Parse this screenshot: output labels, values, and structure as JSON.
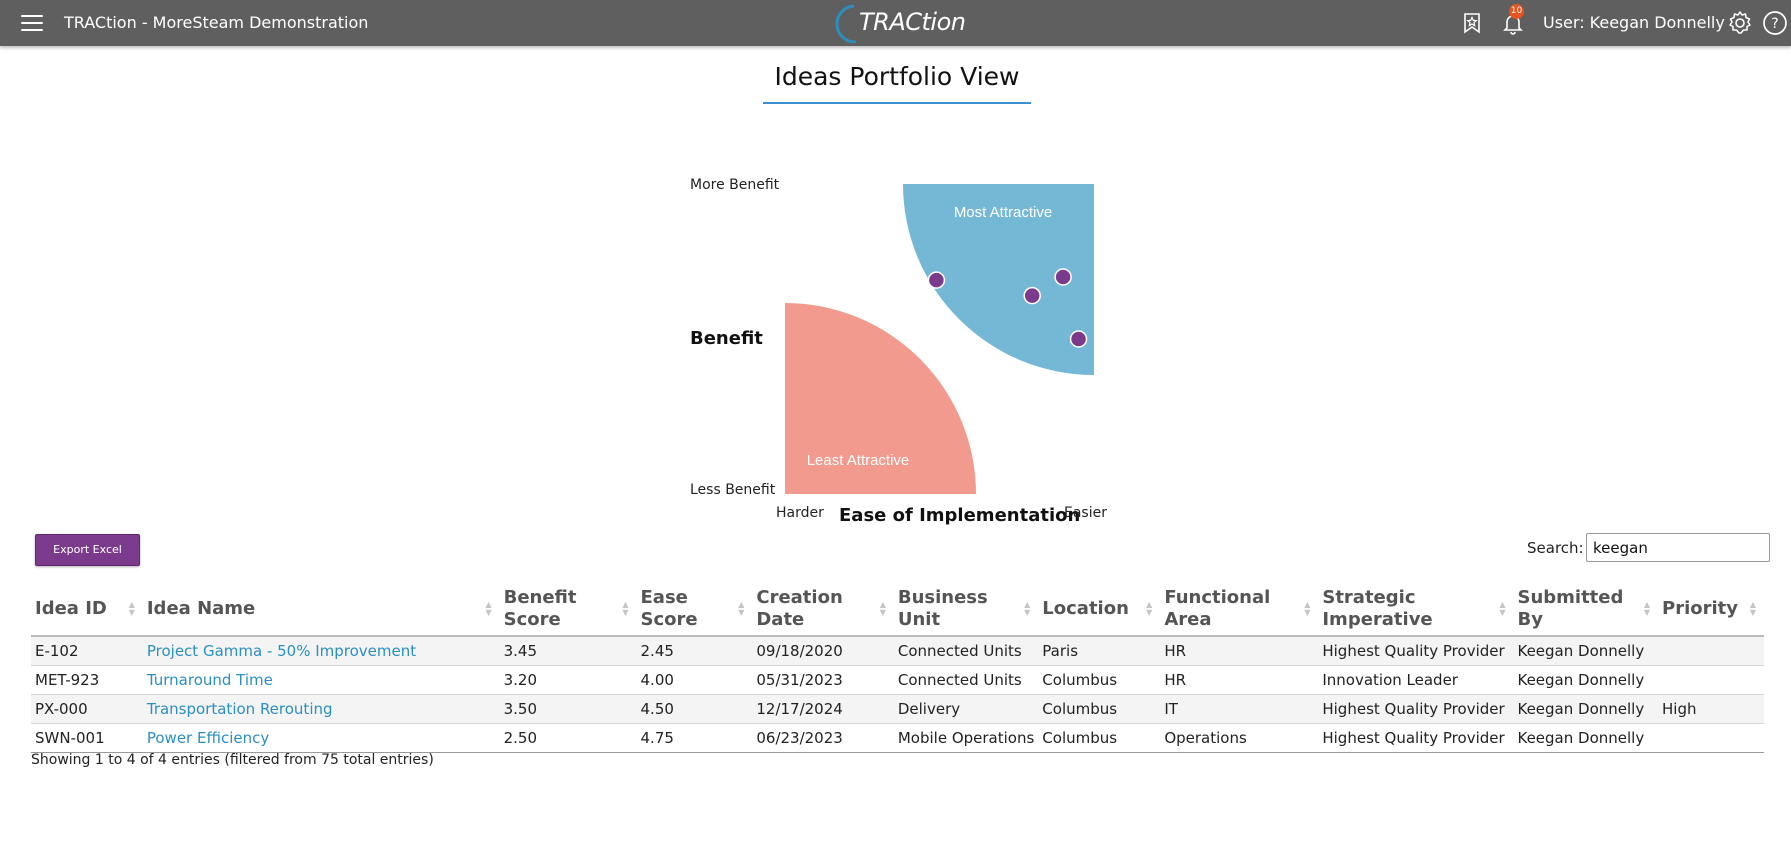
{
  "header": {
    "menu_icon": "hamburger-menu-icon",
    "app_title": "TRACtion - MoreSteam Demonstration",
    "logo_text": "TRACtion",
    "favorites_icon": "star-bookmark-icon",
    "notifications_icon": "bell-icon",
    "notification_count": "10",
    "user_label": "User: Keegan Donnelly",
    "settings_icon": "gear-icon",
    "help_icon": "help-circle-icon"
  },
  "page": {
    "title": "Ideas Portfolio View"
  },
  "chart_data": {
    "type": "scatter",
    "title": "",
    "ylabel": "Benefit",
    "xlabel": "Ease of Implementation",
    "y_top_label": "More Benefit",
    "y_bottom_label": "Less Benefit",
    "x_left_label": "Harder",
    "x_right_label": "Easier",
    "xlim": [
      0,
      5
    ],
    "ylim": [
      0,
      5
    ],
    "quadrants": [
      {
        "name": "Most Attractive",
        "color": "#75b8d6"
      },
      {
        "name": "Least Attractive",
        "color": "#f29a8d"
      }
    ],
    "point_color": "#7b3a8c",
    "points": [
      {
        "id": "E-102",
        "x": 2.45,
        "y": 3.45
      },
      {
        "id": "MET-923",
        "x": 4.0,
        "y": 3.2
      },
      {
        "id": "PX-000",
        "x": 4.5,
        "y": 3.5
      },
      {
        "id": "SWN-001",
        "x": 4.75,
        "y": 2.5
      }
    ],
    "grid": false
  },
  "toolbar": {
    "export_label": "Export Excel",
    "search_label": "Search:",
    "search_value": "keegan"
  },
  "table": {
    "columns": [
      {
        "l1": "Idea ID",
        "l2": ""
      },
      {
        "l1": "Idea Name",
        "l2": ""
      },
      {
        "l1": "Benefit",
        "l2": "Score"
      },
      {
        "l1": "Ease",
        "l2": "Score"
      },
      {
        "l1": "Creation",
        "l2": "Date"
      },
      {
        "l1": "Business",
        "l2": "Unit"
      },
      {
        "l1": "Location",
        "l2": ""
      },
      {
        "l1": "Functional",
        "l2": "Area"
      },
      {
        "l1": "Strategic",
        "l2": "Imperative"
      },
      {
        "l1": "Submitted",
        "l2": "By"
      },
      {
        "l1": "Priority",
        "l2": ""
      }
    ],
    "rows": [
      [
        "E-102",
        "Project Gamma - 50% Improvement",
        "3.45",
        "2.45",
        "09/18/2020",
        "Connected Units",
        "Paris",
        "HR",
        "Highest Quality Provider",
        "Keegan Donnelly",
        ""
      ],
      [
        "MET-923",
        "Turnaround Time",
        "3.20",
        "4.00",
        "05/31/2023",
        "Connected Units",
        "Columbus",
        "HR",
        "Innovation Leader",
        "Keegan Donnelly",
        ""
      ],
      [
        "PX-000",
        "Transportation Rerouting",
        "3.50",
        "4.50",
        "12/17/2024",
        "Delivery",
        "Columbus",
        "IT",
        "Highest Quality Provider",
        "Keegan Donnelly",
        "High"
      ],
      [
        "SWN-001",
        "Power Efficiency",
        "2.50",
        "4.75",
        "06/23/2023",
        "Mobile Operations",
        "Columbus",
        "Operations",
        "Highest Quality Provider",
        "Keegan Donnelly",
        ""
      ]
    ],
    "info": "Showing 1 to 4 of 4 entries (filtered from 75 total entries)"
  }
}
